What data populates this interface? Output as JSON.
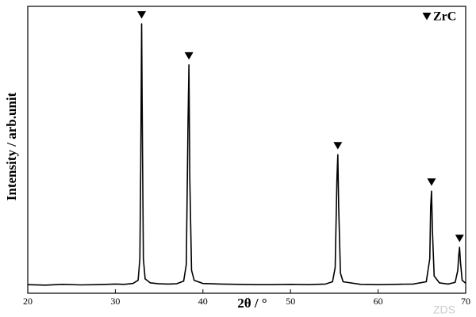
{
  "chart_data": {
    "type": "line",
    "xlabel": "2θ / °",
    "ylabel": "Intensity / arb.unit",
    "watermark": "ZDS",
    "x": [
      20,
      22,
      24,
      26,
      28,
      30,
      31,
      32,
      32.6,
      32.8,
      32.9,
      33.0,
      33.1,
      33.2,
      33.4,
      34,
      35,
      36,
      37,
      37.8,
      38.1,
      38.3,
      38.4,
      38.5,
      38.7,
      39,
      40,
      42,
      44,
      46,
      48,
      50,
      52,
      54,
      54.8,
      55.1,
      55.3,
      55.4,
      55.5,
      55.7,
      56,
      58,
      60,
      62,
      64,
      65.5,
      65.9,
      66.0,
      66.1,
      66.2,
      66.4,
      67,
      68,
      68.8,
      69.1,
      69.2,
      69.3,
      69.4,
      69.6,
      70
    ],
    "values": [
      3.0,
      2.8,
      3.1,
      2.9,
      3.0,
      3.2,
      3.1,
      3.4,
      4.5,
      12,
      45,
      93.9,
      50,
      12,
      5,
      3.6,
      3.3,
      3.2,
      3.3,
      4.2,
      10,
      60,
      79.6,
      40,
      8,
      4.5,
      3.4,
      3.2,
      3.1,
      3.0,
      3.0,
      3.1,
      3.0,
      3.2,
      4.0,
      9,
      40,
      48.3,
      30,
      7,
      4.0,
      3.1,
      3.0,
      3.1,
      3.2,
      4.0,
      12,
      30,
      35.6,
      22,
      6,
      3.6,
      3.2,
      3.8,
      8,
      13,
      16.0,
      11,
      4.5,
      3.5
    ],
    "color": "#000000",
    "markers": {
      "name": "ZrC",
      "x": [
        33.0,
        38.4,
        55.4,
        66.1,
        69.3
      ],
      "values": [
        93.9,
        79.6,
        48.3,
        35.6,
        16.0
      ]
    },
    "xlim": [
      20,
      70
    ],
    "ylim": [
      0,
      100
    ],
    "xticks": [
      20,
      30,
      40,
      50,
      60,
      70
    ],
    "legend": "top-right"
  }
}
